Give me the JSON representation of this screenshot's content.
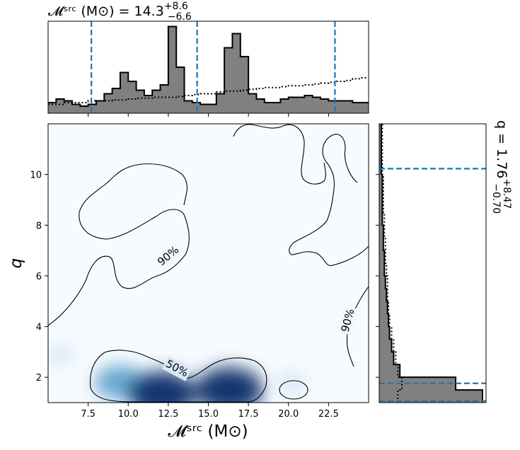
{
  "chart_data": {
    "type": "corner-plot (2D density with contours + marginal histograms)",
    "x_param_label": "𝓜ˢʳᶜ (M⊙)",
    "y_param_label": "q",
    "top_title": {
      "prefix": "𝓜ˢʳᶜ (M⊙) = 14.3",
      "sup": "+8.6",
      "sub": "−6.6"
    },
    "right_title": {
      "prefix": "q = 1.76",
      "sup": "+8.47",
      "sub": "−0.70"
    },
    "xlim": [
      5,
      25
    ],
    "ylim": [
      1,
      12
    ],
    "x_ticks": [
      7.5,
      10.0,
      12.5,
      15.0,
      17.5,
      20.0,
      22.5
    ],
    "x_tick_labels": [
      "7.5",
      "10.0",
      "12.5",
      "15.0",
      "17.5",
      "20.0",
      "22.5"
    ],
    "y_ticks": [
      2,
      4,
      6,
      8,
      10
    ],
    "y_tick_labels": [
      "2",
      "4",
      "6",
      "8",
      "10"
    ],
    "contour_labels": [
      "90%",
      "90%",
      "50%"
    ],
    "density_peaks": [
      {
        "x": 9.5,
        "y": 1.8,
        "w": 0.6
      },
      {
        "x": 12.1,
        "y": 1.35,
        "w": 1.0
      },
      {
        "x": 16.3,
        "y": 1.5,
        "w": 1.0
      },
      {
        "x": 20.2,
        "y": 1.8,
        "w": 0.15
      },
      {
        "x": 5.8,
        "y": 2.9,
        "w": 0.1
      }
    ],
    "x_quantiles": [
      7.7,
      14.3,
      22.9
    ],
    "y_quantiles": [
      1.06,
      1.76,
      10.23
    ],
    "x_hist": {
      "bins": [
        5.0,
        5.5,
        6.0,
        6.5,
        7.0,
        7.5,
        8.0,
        8.5,
        9.0,
        9.5,
        10.0,
        10.5,
        11.0,
        11.5,
        12.0,
        12.5,
        13.0,
        13.5,
        14.0,
        14.5,
        15.0,
        15.5,
        16.0,
        16.5,
        17.0,
        17.5,
        18.0,
        18.5,
        19.0,
        19.5,
        20.0,
        20.5,
        21.0,
        21.5,
        22.0,
        22.5,
        23.0,
        23.5,
        24.0,
        24.5,
        25.0
      ],
      "values": [
        12,
        16,
        14,
        10,
        8,
        10,
        14,
        22,
        28,
        46,
        36,
        26,
        20,
        26,
        32,
        98,
        52,
        14,
        12,
        10,
        10,
        22,
        74,
        90,
        64,
        22,
        16,
        12,
        12,
        16,
        18,
        18,
        20,
        18,
        16,
        14,
        14,
        14,
        12,
        12
      ],
      "prior": [
        10,
        10,
        12,
        12,
        12,
        14,
        14,
        14,
        15,
        15,
        16,
        17,
        17,
        18,
        18,
        18,
        19,
        20,
        21,
        22,
        22,
        24,
        25,
        25,
        26,
        27,
        28,
        29,
        29,
        30,
        31,
        31,
        32,
        33,
        34,
        35,
        36,
        37,
        39,
        40
      ]
    },
    "y_hist": {
      "bins": [
        1.0,
        1.5,
        2.0,
        2.5,
        3.0,
        3.5,
        4.0,
        4.5,
        5.0,
        5.5,
        6.0,
        6.5,
        7.0,
        7.5,
        8.0,
        8.5,
        9.0,
        9.5,
        10.0,
        10.5,
        11.0,
        11.5,
        12.0
      ],
      "values": [
        100,
        74,
        20,
        14,
        12,
        10,
        9,
        8,
        7,
        6,
        5,
        5,
        4,
        4,
        3,
        3,
        3,
        3,
        2,
        2,
        2,
        2
      ],
      "prior": [
        18,
        22,
        18,
        16,
        14,
        12,
        10,
        9,
        8,
        8,
        7,
        6,
        6,
        5,
        5,
        4,
        4,
        4,
        3,
        3,
        3,
        3
      ]
    },
    "grid": false,
    "colormap": "Blues"
  }
}
